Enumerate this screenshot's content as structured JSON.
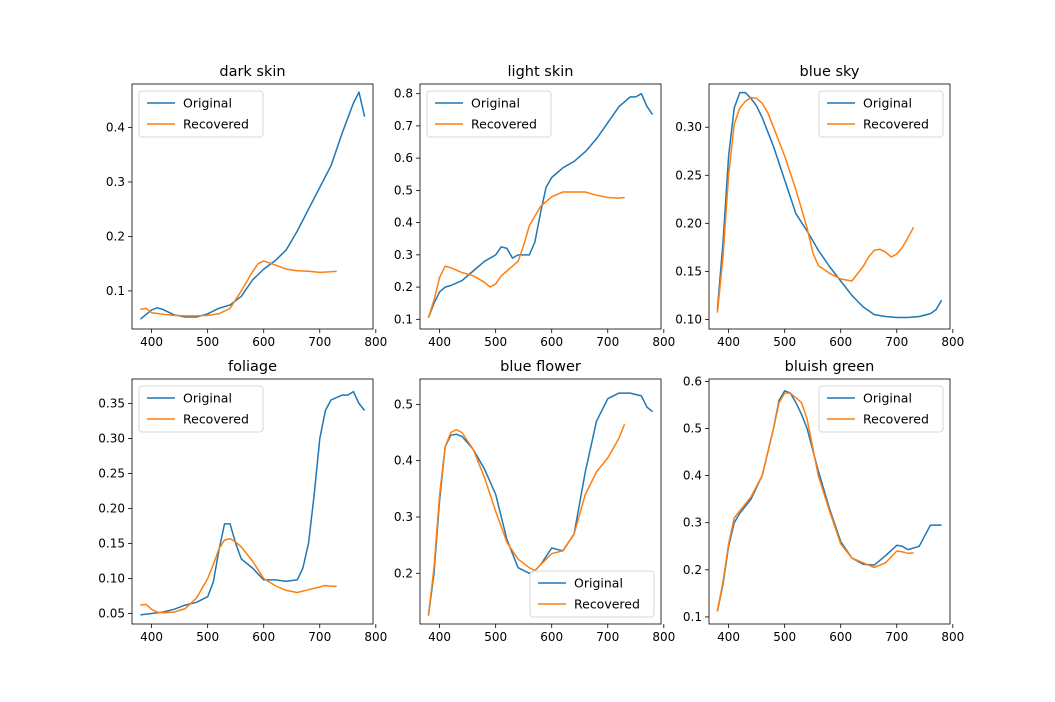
{
  "colors": {
    "original": "#1f77b4",
    "recovered": "#ff7f0e",
    "axes": "#000000",
    "legend_edge": "#cccccc"
  },
  "chart_data": [
    {
      "type": "line",
      "title": "dark skin",
      "xlim": [
        365,
        795
      ],
      "ylim": [
        0.03,
        0.48
      ],
      "xticks": [
        400,
        500,
        600,
        700,
        800
      ],
      "yticks": [
        0.1,
        0.2,
        0.3,
        0.4
      ],
      "ytick_labels": [
        "0.1",
        "0.2",
        "0.3",
        "0.4"
      ],
      "legend": "upper left",
      "series": [
        {
          "name": "Original",
          "x": [
            380,
            400,
            410,
            420,
            440,
            460,
            480,
            500,
            520,
            540,
            560,
            580,
            600,
            620,
            640,
            660,
            680,
            700,
            720,
            740,
            760,
            770,
            780
          ],
          "y": [
            0.048,
            0.065,
            0.069,
            0.066,
            0.056,
            0.052,
            0.052,
            0.058,
            0.068,
            0.074,
            0.09,
            0.12,
            0.14,
            0.155,
            0.175,
            0.21,
            0.25,
            0.29,
            0.33,
            0.39,
            0.445,
            0.465,
            0.42
          ]
        },
        {
          "name": "Recovered",
          "x": [
            380,
            390,
            400,
            420,
            440,
            460,
            480,
            500,
            520,
            540,
            560,
            580,
            590,
            600,
            620,
            640,
            660,
            680,
            700,
            720,
            730
          ],
          "y": [
            0.066,
            0.068,
            0.06,
            0.057,
            0.055,
            0.054,
            0.054,
            0.055,
            0.058,
            0.068,
            0.1,
            0.135,
            0.15,
            0.155,
            0.148,
            0.14,
            0.137,
            0.136,
            0.134,
            0.135,
            0.136
          ]
        }
      ]
    },
    {
      "type": "line",
      "title": "light skin",
      "xlim": [
        365,
        795
      ],
      "ylim": [
        0.07,
        0.83
      ],
      "xticks": [
        400,
        500,
        600,
        700,
        800
      ],
      "yticks": [
        0.1,
        0.2,
        0.3,
        0.4,
        0.5,
        0.6,
        0.7,
        0.8
      ],
      "ytick_labels": [
        "0.1",
        "0.2",
        "0.3",
        "0.4",
        "0.5",
        "0.6",
        "0.7",
        "0.8"
      ],
      "legend": "upper left",
      "series": [
        {
          "name": "Original",
          "x": [
            380,
            390,
            400,
            410,
            420,
            440,
            460,
            480,
            500,
            510,
            520,
            530,
            540,
            560,
            570,
            580,
            590,
            600,
            620,
            640,
            660,
            680,
            700,
            720,
            740,
            750,
            760,
            770,
            780
          ],
          "y": [
            0.105,
            0.15,
            0.185,
            0.2,
            0.205,
            0.22,
            0.25,
            0.28,
            0.3,
            0.325,
            0.32,
            0.29,
            0.3,
            0.3,
            0.34,
            0.43,
            0.51,
            0.54,
            0.57,
            0.59,
            0.62,
            0.66,
            0.71,
            0.76,
            0.79,
            0.79,
            0.8,
            0.76,
            0.735
          ]
        },
        {
          "name": "Recovered",
          "x": [
            380,
            390,
            400,
            410,
            420,
            440,
            460,
            480,
            490,
            500,
            510,
            520,
            530,
            540,
            550,
            560,
            580,
            600,
            620,
            640,
            660,
            680,
            700,
            720,
            730
          ],
          "y": [
            0.105,
            0.16,
            0.23,
            0.265,
            0.26,
            0.245,
            0.235,
            0.215,
            0.2,
            0.21,
            0.235,
            0.25,
            0.265,
            0.28,
            0.33,
            0.39,
            0.45,
            0.48,
            0.495,
            0.495,
            0.495,
            0.485,
            0.478,
            0.476,
            0.478
          ]
        }
      ]
    },
    {
      "type": "line",
      "title": "blue sky",
      "xlim": [
        365,
        795
      ],
      "ylim": [
        0.09,
        0.345
      ],
      "xticks": [
        400,
        500,
        600,
        700,
        800
      ],
      "yticks": [
        0.1,
        0.15,
        0.2,
        0.25,
        0.3
      ],
      "ytick_labels": [
        "0.10",
        "0.15",
        "0.20",
        "0.25",
        "0.30"
      ],
      "legend": "upper right",
      "series": [
        {
          "name": "Original",
          "x": [
            380,
            390,
            400,
            410,
            420,
            430,
            440,
            450,
            460,
            480,
            500,
            520,
            540,
            560,
            580,
            600,
            620,
            640,
            660,
            680,
            700,
            720,
            740,
            760,
            770,
            780
          ],
          "y": [
            0.11,
            0.18,
            0.27,
            0.32,
            0.336,
            0.336,
            0.33,
            0.322,
            0.31,
            0.28,
            0.245,
            0.21,
            0.192,
            0.172,
            0.155,
            0.14,
            0.125,
            0.113,
            0.105,
            0.103,
            0.102,
            0.102,
            0.103,
            0.106,
            0.11,
            0.12
          ]
        },
        {
          "name": "Recovered",
          "x": [
            380,
            390,
            400,
            410,
            420,
            430,
            440,
            450,
            460,
            470,
            480,
            500,
            520,
            540,
            550,
            560,
            580,
            600,
            620,
            640,
            650,
            660,
            670,
            680,
            690,
            700,
            710,
            720,
            730
          ],
          "y": [
            0.107,
            0.165,
            0.25,
            0.303,
            0.32,
            0.327,
            0.331,
            0.33,
            0.325,
            0.315,
            0.3,
            0.27,
            0.235,
            0.195,
            0.17,
            0.156,
            0.148,
            0.142,
            0.14,
            0.155,
            0.165,
            0.172,
            0.173,
            0.17,
            0.165,
            0.168,
            0.175,
            0.185,
            0.196
          ]
        }
      ]
    },
    {
      "type": "line",
      "title": "foliage",
      "xlim": [
        365,
        795
      ],
      "ylim": [
        0.035,
        0.385
      ],
      "xticks": [
        400,
        500,
        600,
        700,
        800
      ],
      "yticks": [
        0.05,
        0.1,
        0.15,
        0.2,
        0.25,
        0.3,
        0.35
      ],
      "ytick_labels": [
        "0.05",
        "0.10",
        "0.15",
        "0.20",
        "0.25",
        "0.30",
        "0.35"
      ],
      "legend": "upper left",
      "series": [
        {
          "name": "Original",
          "x": [
            380,
            400,
            420,
            440,
            460,
            480,
            500,
            510,
            520,
            530,
            540,
            550,
            560,
            580,
            600,
            620,
            640,
            660,
            670,
            680,
            690,
            700,
            710,
            720,
            740,
            750,
            760,
            770,
            780
          ],
          "y": [
            0.048,
            0.05,
            0.052,
            0.056,
            0.062,
            0.066,
            0.074,
            0.095,
            0.14,
            0.178,
            0.178,
            0.15,
            0.128,
            0.115,
            0.098,
            0.098,
            0.096,
            0.098,
            0.115,
            0.15,
            0.22,
            0.3,
            0.34,
            0.355,
            0.362,
            0.362,
            0.367,
            0.35,
            0.34
          ]
        },
        {
          "name": "Recovered",
          "x": [
            380,
            390,
            400,
            410,
            420,
            440,
            460,
            480,
            500,
            510,
            520,
            530,
            540,
            550,
            560,
            580,
            600,
            620,
            640,
            660,
            680,
            700,
            710,
            720,
            730
          ],
          "y": [
            0.062,
            0.063,
            0.056,
            0.052,
            0.051,
            0.052,
            0.057,
            0.072,
            0.1,
            0.12,
            0.142,
            0.155,
            0.157,
            0.152,
            0.145,
            0.125,
            0.1,
            0.09,
            0.083,
            0.08,
            0.084,
            0.088,
            0.09,
            0.089,
            0.089
          ]
        }
      ]
    },
    {
      "type": "line",
      "title": "blue flower",
      "xlim": [
        365,
        795
      ],
      "ylim": [
        0.11,
        0.545
      ],
      "xticks": [
        400,
        500,
        600,
        700,
        800
      ],
      "yticks": [
        0.2,
        0.3,
        0.4,
        0.5
      ],
      "ytick_labels": [
        "0.2",
        "0.3",
        "0.4",
        "0.5"
      ],
      "legend": "lower right",
      "series": [
        {
          "name": "Original",
          "x": [
            380,
            390,
            400,
            410,
            420,
            430,
            440,
            460,
            480,
            500,
            520,
            540,
            560,
            570,
            580,
            600,
            620,
            640,
            660,
            680,
            700,
            720,
            740,
            760,
            770,
            780
          ],
          "y": [
            0.125,
            0.2,
            0.33,
            0.425,
            0.445,
            0.447,
            0.443,
            0.42,
            0.385,
            0.34,
            0.26,
            0.21,
            0.2,
            0.205,
            0.215,
            0.245,
            0.24,
            0.27,
            0.38,
            0.47,
            0.51,
            0.52,
            0.52,
            0.515,
            0.495,
            0.487
          ]
        },
        {
          "name": "Recovered",
          "x": [
            380,
            390,
            400,
            410,
            420,
            430,
            440,
            460,
            480,
            500,
            520,
            540,
            560,
            570,
            580,
            600,
            620,
            640,
            660,
            680,
            700,
            720,
            730
          ],
          "y": [
            0.125,
            0.21,
            0.34,
            0.425,
            0.45,
            0.455,
            0.45,
            0.42,
            0.37,
            0.31,
            0.255,
            0.225,
            0.21,
            0.205,
            0.215,
            0.235,
            0.24,
            0.27,
            0.34,
            0.38,
            0.405,
            0.44,
            0.465
          ]
        }
      ]
    },
    {
      "type": "line",
      "title": "bluish green",
      "xlim": [
        365,
        795
      ],
      "ylim": [
        0.085,
        0.605
      ],
      "xticks": [
        400,
        500,
        600,
        700,
        800
      ],
      "yticks": [
        0.1,
        0.2,
        0.3,
        0.4,
        0.5,
        0.6
      ],
      "ytick_labels": [
        "0.1",
        "0.2",
        "0.3",
        "0.4",
        "0.5",
        "0.6"
      ],
      "legend": "upper right",
      "series": [
        {
          "name": "Original",
          "x": [
            380,
            390,
            400,
            410,
            420,
            440,
            460,
            480,
            490,
            500,
            510,
            520,
            530,
            540,
            560,
            580,
            600,
            620,
            640,
            660,
            680,
            700,
            710,
            720,
            740,
            760,
            770,
            780
          ],
          "y": [
            0.112,
            0.17,
            0.25,
            0.3,
            0.32,
            0.35,
            0.4,
            0.5,
            0.56,
            0.58,
            0.575,
            0.555,
            0.53,
            0.5,
            0.41,
            0.33,
            0.26,
            0.225,
            0.212,
            0.21,
            0.23,
            0.252,
            0.25,
            0.243,
            0.25,
            0.295,
            0.295,
            0.295
          ]
        },
        {
          "name": "Recovered",
          "x": [
            380,
            390,
            400,
            410,
            420,
            440,
            460,
            480,
            490,
            500,
            510,
            520,
            530,
            540,
            560,
            580,
            600,
            620,
            640,
            660,
            680,
            700,
            710,
            720,
            730
          ],
          "y": [
            0.112,
            0.175,
            0.255,
            0.31,
            0.325,
            0.355,
            0.4,
            0.5,
            0.555,
            0.575,
            0.575,
            0.565,
            0.555,
            0.52,
            0.4,
            0.325,
            0.255,
            0.225,
            0.215,
            0.205,
            0.215,
            0.24,
            0.238,
            0.235,
            0.236
          ]
        }
      ]
    }
  ]
}
